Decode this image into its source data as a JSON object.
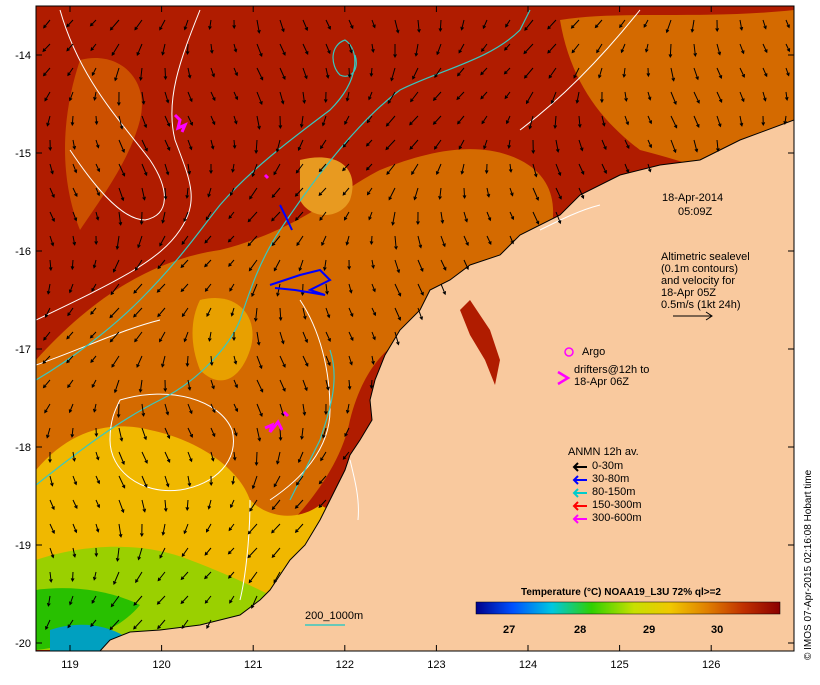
{
  "map": {
    "date_line1": "18-Apr-2014",
    "date_line2": "05:09Z",
    "altimetry": [
      "Altimetric sealevel",
      "(0.1m contours)",
      "and velocity for",
      "18-Apr 05Z",
      "0.5m/s (1kt 24h)"
    ],
    "argo_label": "Argo",
    "drifters": [
      "drifters@12h to",
      "18-Apr 06Z"
    ],
    "anmn_title": "ANMN 12h av.",
    "anmn_items": [
      {
        "label": "0-30m",
        "color": "#000000"
      },
      {
        "label": "30-80m",
        "color": "#0000ff"
      },
      {
        "label": "80-150m",
        "color": "#00cccc"
      },
      {
        "label": "150-300m",
        "color": "#ff0000"
      },
      {
        "label": "300-600m",
        "color": "#ff00ff"
      }
    ],
    "bathy_label": "200_1000m",
    "credit": "© IMOS 07-Apr-2015 02:16:08 Hobart time",
    "colorbar_title": "Temperature (°C) NOAA19_L3U 72% ql>=2",
    "colorbar_ticks": [
      "27",
      "28",
      "29",
      "30"
    ],
    "x_ticks": [
      "119",
      "120",
      "121",
      "122",
      "123",
      "124",
      "125",
      "126"
    ],
    "y_ticks": [
      "-14",
      "-15",
      "-16",
      "-17",
      "-18",
      "-19",
      "-20"
    ],
    "colors": {
      "land": "#f9c99e",
      "warm": "#b01c00",
      "mid": "#d46a00",
      "cool": "#f0b800",
      "cold": "#28c000",
      "contour": "#ffffff",
      "isobath": "#38c8c0"
    }
  }
}
